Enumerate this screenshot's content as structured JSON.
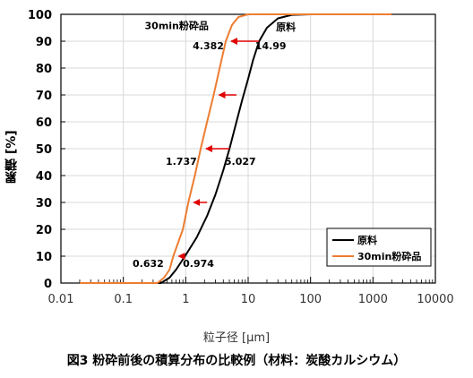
{
  "chart_data": {
    "type": "line",
    "xlabel": "粒子径 [μm]",
    "ylabel": "累積 [%]",
    "caption": "図3 粉砕前後の積算分布の比較例（材料：炭酸カルシウム）",
    "x_scale": "log",
    "xlim": [
      0.01,
      10000
    ],
    "ylim": [
      0,
      100
    ],
    "x_ticks": [
      "0.01",
      "0.1",
      "1",
      "10",
      "100",
      "1000",
      "10000"
    ],
    "y_ticks": [
      "0",
      "10",
      "20",
      "30",
      "40",
      "50",
      "60",
      "70",
      "80",
      "90",
      "100"
    ],
    "grid": true,
    "legend_position": "bottom-right",
    "series": [
      {
        "name": "原料",
        "color": "#000000",
        "points": [
          [
            0.02,
            0
          ],
          [
            0.4,
            0
          ],
          [
            0.55,
            2
          ],
          [
            0.7,
            5
          ],
          [
            0.974,
            10
          ],
          [
            1.5,
            17
          ],
          [
            2.2,
            25
          ],
          [
            3.0,
            33
          ],
          [
            4.0,
            42
          ],
          [
            5.027,
            50
          ],
          [
            6.5,
            60
          ],
          [
            8.0,
            68
          ],
          [
            10,
            76
          ],
          [
            12,
            83
          ],
          [
            14.99,
            90
          ],
          [
            20,
            95
          ],
          [
            30,
            98.5
          ],
          [
            50,
            99.8
          ],
          [
            100,
            100
          ],
          [
            2000,
            100
          ]
        ]
      },
      {
        "name": "30min粉砕品",
        "color": "#ED7D31",
        "points": [
          [
            0.02,
            0
          ],
          [
            0.35,
            0
          ],
          [
            0.45,
            2
          ],
          [
            0.55,
            5
          ],
          [
            0.632,
            10
          ],
          [
            0.9,
            20
          ],
          [
            1.1,
            30
          ],
          [
            1.4,
            40
          ],
          [
            1.737,
            50
          ],
          [
            2.2,
            60
          ],
          [
            2.8,
            70
          ],
          [
            3.5,
            80
          ],
          [
            4.382,
            90
          ],
          [
            5.5,
            96
          ],
          [
            7,
            99
          ],
          [
            10,
            100
          ],
          [
            2000,
            100
          ]
        ]
      }
    ],
    "annotations": [
      {
        "text": "4.382",
        "x": 2.3,
        "y": 87
      },
      {
        "text": "14.99",
        "x": 23,
        "y": 87
      },
      {
        "text": "1.737",
        "x": 0.85,
        "y": 44
      },
      {
        "text": "5.027",
        "x": 7.5,
        "y": 44
      },
      {
        "text": "0.632",
        "x": 0.25,
        "y": 6
      },
      {
        "text": "0.974",
        "x": 1.6,
        "y": 6
      }
    ],
    "labels_in_plot": [
      {
        "text": "30min粉砕品",
        "x": 0.22,
        "y": 94.5
      },
      {
        "text": "原料",
        "x": 28,
        "y": 94
      }
    ],
    "arrows": [
      {
        "x_from": 14.99,
        "x_to": 4.382,
        "y": 90
      },
      {
        "x_from": 6.5,
        "x_to": 2.8,
        "y": 70
      },
      {
        "x_from": 5.027,
        "x_to": 1.737,
        "y": 50
      },
      {
        "x_from": 2.2,
        "x_to": 1.1,
        "y": 30
      },
      {
        "x_from": 0.974,
        "x_to": 0.632,
        "y": 10
      }
    ],
    "arrow_color": "#E00000"
  }
}
